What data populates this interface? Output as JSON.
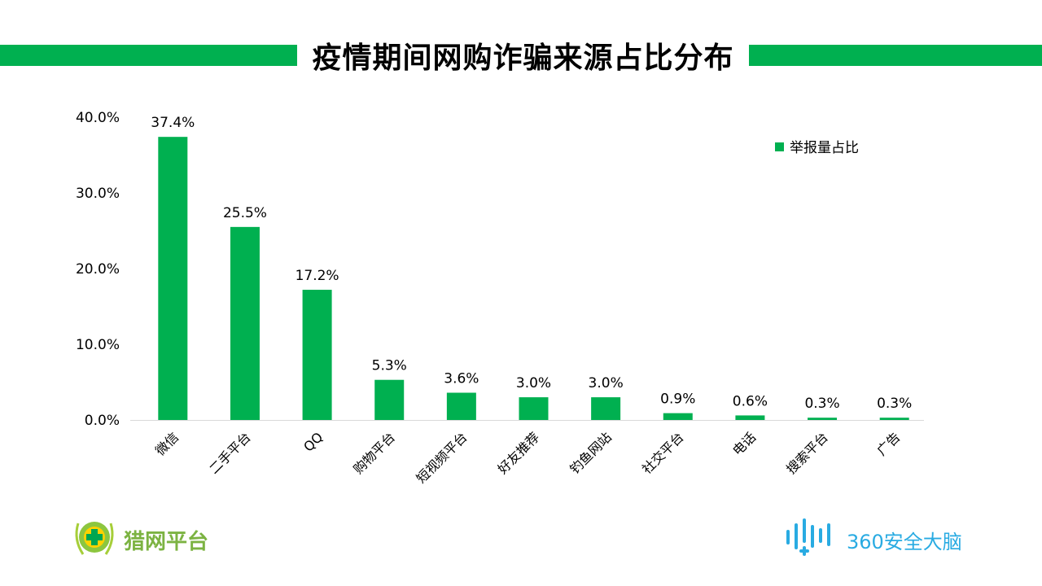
{
  "title": "疫情期间网购诈骗来源占比分布",
  "colors": {
    "accent": "#00b050",
    "axis": "#d9d9d9",
    "logo_blue": "#29abe2"
  },
  "logos": {
    "left_text": "猎网平台",
    "right_text": "360安全大脑"
  },
  "chart_data": {
    "type": "bar",
    "categories": [
      "微信",
      "二手平台",
      "QQ",
      "购物平台",
      "短视频平台",
      "好友推荐",
      "钓鱼网站",
      "社交平台",
      "电话",
      "搜索平台",
      "广告"
    ],
    "series": [
      {
        "name": "举报量占比",
        "values": [
          37.4,
          25.5,
          17.2,
          5.3,
          3.6,
          3.0,
          3.0,
          0.9,
          0.6,
          0.3,
          0.3
        ]
      }
    ],
    "data_labels": [
      "37.4%",
      "25.5%",
      "17.2%",
      "5.3%",
      "3.6%",
      "3.0%",
      "3.0%",
      "0.9%",
      "0.6%",
      "0.3%",
      "0.3%"
    ],
    "y_ticks": [
      "0.0%",
      "10.0%",
      "20.0%",
      "30.0%",
      "40.0%"
    ],
    "ylim": [
      0,
      40
    ],
    "grid": false,
    "legend_position": "top-right"
  }
}
